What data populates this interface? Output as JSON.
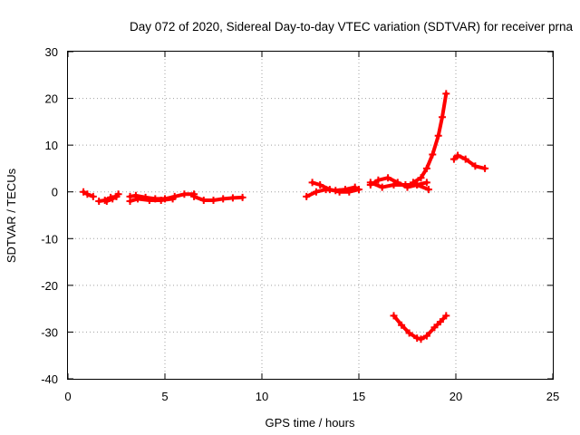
{
  "chart_data": {
    "type": "scatter",
    "title": "Day 072 of 2020, Sidereal Day-to-day VTEC variation (SDTVAR) for receiver prna",
    "xlabel": "GPS time / hours",
    "ylabel": "SDTVAR / TECUs",
    "xlim": [
      0,
      25
    ],
    "ylim": [
      -40,
      30
    ],
    "x_ticks": [
      0,
      5,
      10,
      15,
      20,
      25
    ],
    "x_tick_labels": [
      "0",
      "5",
      "10",
      "15",
      "20",
      "25"
    ],
    "y_ticks": [
      -40,
      -30,
      -20,
      -10,
      0,
      10,
      20,
      30
    ],
    "y_tick_labels": [
      "-40",
      "-30",
      "-20",
      "-10",
      "0",
      "10",
      "20",
      "30"
    ],
    "grid": true,
    "legend": "none",
    "color": "#ff0000",
    "series": [
      {
        "x": [
          0.8,
          1.0,
          1.3
        ],
        "y": [
          0.0,
          -0.5,
          -1.0
        ]
      },
      {
        "x": [
          1.6,
          1.9,
          2.2,
          2.5
        ],
        "y": [
          -2.0,
          -1.8,
          -1.2,
          -1.0
        ]
      },
      {
        "x": [
          2.0,
          2.3,
          2.6
        ],
        "y": [
          -2.0,
          -1.5,
          -0.5
        ]
      },
      {
        "x": [
          3.2,
          3.5,
          4.0,
          4.5,
          5.0,
          5.5,
          6.0,
          6.5
        ],
        "y": [
          -1.0,
          -0.8,
          -1.2,
          -1.5,
          -1.5,
          -1.0,
          -0.5,
          -0.5
        ]
      },
      {
        "x": [
          3.2,
          3.6,
          4.2,
          4.8,
          5.4
        ],
        "y": [
          -2.0,
          -1.5,
          -1.8,
          -1.8,
          -1.5
        ]
      },
      {
        "x": [
          6.5,
          7.0,
          7.5,
          8.0,
          8.5,
          9.0
        ],
        "y": [
          -1.0,
          -1.8,
          -1.8,
          -1.5,
          -1.3,
          -1.2
        ]
      },
      {
        "x": [
          12.3,
          12.8,
          13.3,
          13.8,
          14.3,
          14.8
        ],
        "y": [
          -1.0,
          0.0,
          0.5,
          0.3,
          0.5,
          1.0
        ]
      },
      {
        "x": [
          12.6,
          13.0,
          13.5,
          14.0,
          14.5,
          15.0
        ],
        "y": [
          2.0,
          1.5,
          0.5,
          0.0,
          0.0,
          0.5
        ]
      },
      {
        "x": [
          15.6,
          16.0,
          16.5,
          17.0,
          17.5,
          18.0,
          18.5
        ],
        "y": [
          1.5,
          2.5,
          3.0,
          2.0,
          1.0,
          1.5,
          2.0
        ]
      },
      {
        "x": [
          15.6,
          16.2,
          16.8,
          17.4,
          18.0,
          18.6
        ],
        "y": [
          2.0,
          1.0,
          1.5,
          1.5,
          1.5,
          0.5
        ]
      },
      {
        "x": [
          17.8,
          18.2,
          18.5,
          18.8,
          19.1,
          19.3,
          19.5
        ],
        "y": [
          2.0,
          3.0,
          5.0,
          8.0,
          12.0,
          16.0,
          21.0
        ]
      },
      {
        "x": [
          16.8,
          17.2,
          17.6,
          18.0,
          18.2,
          18.5,
          18.9,
          19.2,
          19.5
        ],
        "y": [
          -26.5,
          -28.5,
          -30.2,
          -31.3,
          -31.5,
          -30.8,
          -29.0,
          -27.8,
          -26.5
        ]
      },
      {
        "x": [
          19.9,
          20.1,
          20.5,
          21.0,
          21.5
        ],
        "y": [
          7.0,
          7.8,
          7.0,
          5.5,
          5.0
        ]
      }
    ]
  }
}
